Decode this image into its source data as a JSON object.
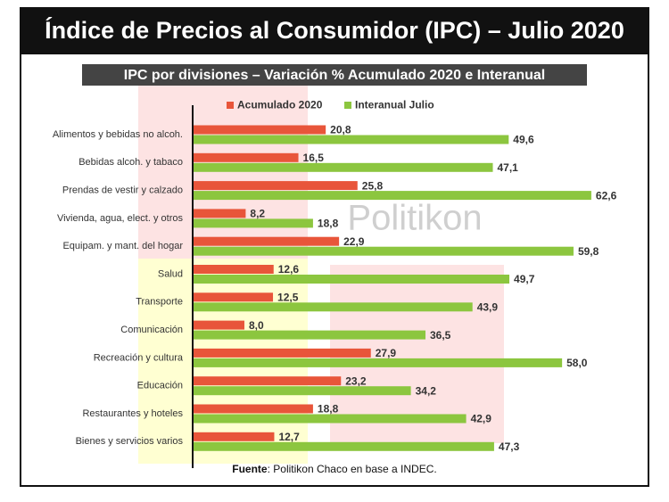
{
  "chart_data": {
    "type": "hbar",
    "title": "Índice de Precios al Consumidor (IPC) – Julio 2020",
    "subtitle": "IPC por divisiones – Variación % Acumulado 2020 e Interanual",
    "watermark": "Politikon",
    "source": {
      "label": "Fuente",
      "text": ": Politikon Chaco en base a INDEC."
    },
    "categories": [
      "Alimentos y bebidas no alcoh.",
      "Bebidas alcoh. y tabaco",
      "Prendas de vestir y calzado",
      "Vivienda, agua, elect. y otros",
      "Equipam. y mant. del hogar",
      "Salud",
      "Transporte",
      "Comunicación",
      "Recreación y cultura",
      "Educación",
      "Restaurantes y hoteles",
      "Bienes y servicios varios"
    ],
    "xlim": [
      0,
      65
    ],
    "series": [
      {
        "name": "Acumulado 2020",
        "color": "#e8553a",
        "values": [
          20.8,
          16.5,
          25.8,
          8.2,
          22.9,
          12.6,
          12.5,
          8.0,
          27.9,
          23.2,
          18.8,
          12.7
        ],
        "value_labels": [
          "20,8",
          "16,5",
          "25,8",
          "8,2",
          "22,9",
          "12,6",
          "12,5",
          "8,0",
          "27,9",
          "23,2",
          "18,8",
          "12,7"
        ]
      },
      {
        "name": "Interanual Julio",
        "color": "#8cc63f",
        "values": [
          49.6,
          47.1,
          62.6,
          18.8,
          59.8,
          49.7,
          43.9,
          36.5,
          58.0,
          34.2,
          42.9,
          47.3
        ],
        "value_labels": [
          "49,6",
          "47,1",
          "62,6",
          "18,8",
          "59,8",
          "49,7",
          "43,9",
          "36,5",
          "58,0",
          "34,2",
          "42,9",
          "47,3"
        ]
      }
    ],
    "legend": "top"
  }
}
